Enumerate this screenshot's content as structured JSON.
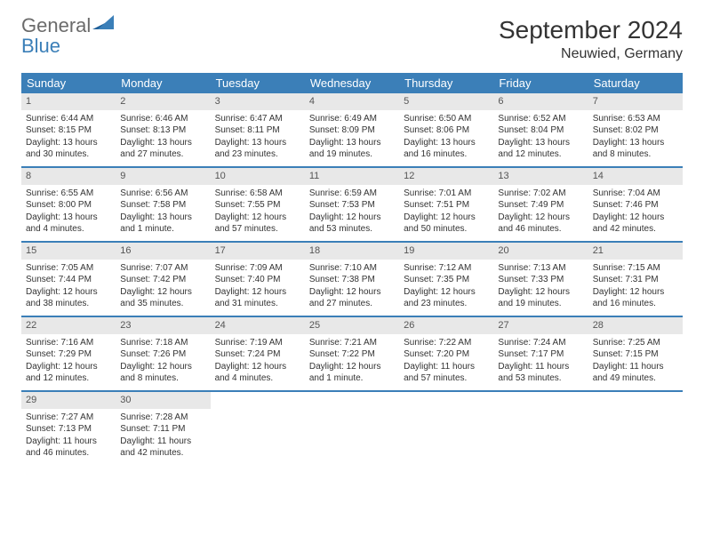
{
  "logo": {
    "text1": "General",
    "text2": "Blue"
  },
  "title": "September 2024",
  "location": "Neuwied, Germany",
  "colors": {
    "header_bg": "#3b7fb8",
    "header_text": "#ffffff",
    "daynum_bg": "#e8e8e8",
    "border": "#3b7fb8",
    "body_text": "#333333"
  },
  "weekdays": [
    "Sunday",
    "Monday",
    "Tuesday",
    "Wednesday",
    "Thursday",
    "Friday",
    "Saturday"
  ],
  "weeks": [
    [
      {
        "num": "1",
        "sunrise": "Sunrise: 6:44 AM",
        "sunset": "Sunset: 8:15 PM",
        "daylight": "Daylight: 13 hours and 30 minutes."
      },
      {
        "num": "2",
        "sunrise": "Sunrise: 6:46 AM",
        "sunset": "Sunset: 8:13 PM",
        "daylight": "Daylight: 13 hours and 27 minutes."
      },
      {
        "num": "3",
        "sunrise": "Sunrise: 6:47 AM",
        "sunset": "Sunset: 8:11 PM",
        "daylight": "Daylight: 13 hours and 23 minutes."
      },
      {
        "num": "4",
        "sunrise": "Sunrise: 6:49 AM",
        "sunset": "Sunset: 8:09 PM",
        "daylight": "Daylight: 13 hours and 19 minutes."
      },
      {
        "num": "5",
        "sunrise": "Sunrise: 6:50 AM",
        "sunset": "Sunset: 8:06 PM",
        "daylight": "Daylight: 13 hours and 16 minutes."
      },
      {
        "num": "6",
        "sunrise": "Sunrise: 6:52 AM",
        "sunset": "Sunset: 8:04 PM",
        "daylight": "Daylight: 13 hours and 12 minutes."
      },
      {
        "num": "7",
        "sunrise": "Sunrise: 6:53 AM",
        "sunset": "Sunset: 8:02 PM",
        "daylight": "Daylight: 13 hours and 8 minutes."
      }
    ],
    [
      {
        "num": "8",
        "sunrise": "Sunrise: 6:55 AM",
        "sunset": "Sunset: 8:00 PM",
        "daylight": "Daylight: 13 hours and 4 minutes."
      },
      {
        "num": "9",
        "sunrise": "Sunrise: 6:56 AM",
        "sunset": "Sunset: 7:58 PM",
        "daylight": "Daylight: 13 hours and 1 minute."
      },
      {
        "num": "10",
        "sunrise": "Sunrise: 6:58 AM",
        "sunset": "Sunset: 7:55 PM",
        "daylight": "Daylight: 12 hours and 57 minutes."
      },
      {
        "num": "11",
        "sunrise": "Sunrise: 6:59 AM",
        "sunset": "Sunset: 7:53 PM",
        "daylight": "Daylight: 12 hours and 53 minutes."
      },
      {
        "num": "12",
        "sunrise": "Sunrise: 7:01 AM",
        "sunset": "Sunset: 7:51 PM",
        "daylight": "Daylight: 12 hours and 50 minutes."
      },
      {
        "num": "13",
        "sunrise": "Sunrise: 7:02 AM",
        "sunset": "Sunset: 7:49 PM",
        "daylight": "Daylight: 12 hours and 46 minutes."
      },
      {
        "num": "14",
        "sunrise": "Sunrise: 7:04 AM",
        "sunset": "Sunset: 7:46 PM",
        "daylight": "Daylight: 12 hours and 42 minutes."
      }
    ],
    [
      {
        "num": "15",
        "sunrise": "Sunrise: 7:05 AM",
        "sunset": "Sunset: 7:44 PM",
        "daylight": "Daylight: 12 hours and 38 minutes."
      },
      {
        "num": "16",
        "sunrise": "Sunrise: 7:07 AM",
        "sunset": "Sunset: 7:42 PM",
        "daylight": "Daylight: 12 hours and 35 minutes."
      },
      {
        "num": "17",
        "sunrise": "Sunrise: 7:09 AM",
        "sunset": "Sunset: 7:40 PM",
        "daylight": "Daylight: 12 hours and 31 minutes."
      },
      {
        "num": "18",
        "sunrise": "Sunrise: 7:10 AM",
        "sunset": "Sunset: 7:38 PM",
        "daylight": "Daylight: 12 hours and 27 minutes."
      },
      {
        "num": "19",
        "sunrise": "Sunrise: 7:12 AM",
        "sunset": "Sunset: 7:35 PM",
        "daylight": "Daylight: 12 hours and 23 minutes."
      },
      {
        "num": "20",
        "sunrise": "Sunrise: 7:13 AM",
        "sunset": "Sunset: 7:33 PM",
        "daylight": "Daylight: 12 hours and 19 minutes."
      },
      {
        "num": "21",
        "sunrise": "Sunrise: 7:15 AM",
        "sunset": "Sunset: 7:31 PM",
        "daylight": "Daylight: 12 hours and 16 minutes."
      }
    ],
    [
      {
        "num": "22",
        "sunrise": "Sunrise: 7:16 AM",
        "sunset": "Sunset: 7:29 PM",
        "daylight": "Daylight: 12 hours and 12 minutes."
      },
      {
        "num": "23",
        "sunrise": "Sunrise: 7:18 AM",
        "sunset": "Sunset: 7:26 PM",
        "daylight": "Daylight: 12 hours and 8 minutes."
      },
      {
        "num": "24",
        "sunrise": "Sunrise: 7:19 AM",
        "sunset": "Sunset: 7:24 PM",
        "daylight": "Daylight: 12 hours and 4 minutes."
      },
      {
        "num": "25",
        "sunrise": "Sunrise: 7:21 AM",
        "sunset": "Sunset: 7:22 PM",
        "daylight": "Daylight: 12 hours and 1 minute."
      },
      {
        "num": "26",
        "sunrise": "Sunrise: 7:22 AM",
        "sunset": "Sunset: 7:20 PM",
        "daylight": "Daylight: 11 hours and 57 minutes."
      },
      {
        "num": "27",
        "sunrise": "Sunrise: 7:24 AM",
        "sunset": "Sunset: 7:17 PM",
        "daylight": "Daylight: 11 hours and 53 minutes."
      },
      {
        "num": "28",
        "sunrise": "Sunrise: 7:25 AM",
        "sunset": "Sunset: 7:15 PM",
        "daylight": "Daylight: 11 hours and 49 minutes."
      }
    ],
    [
      {
        "num": "29",
        "sunrise": "Sunrise: 7:27 AM",
        "sunset": "Sunset: 7:13 PM",
        "daylight": "Daylight: 11 hours and 46 minutes."
      },
      {
        "num": "30",
        "sunrise": "Sunrise: 7:28 AM",
        "sunset": "Sunset: 7:11 PM",
        "daylight": "Daylight: 11 hours and 42 minutes."
      },
      null,
      null,
      null,
      null,
      null
    ]
  ]
}
